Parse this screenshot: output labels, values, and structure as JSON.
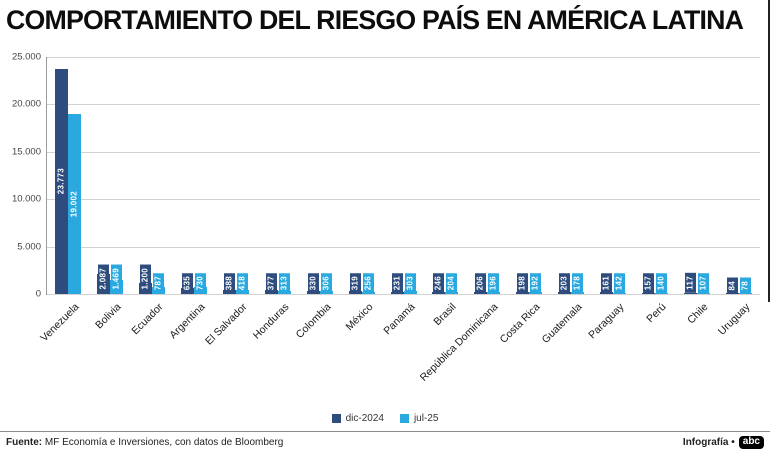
{
  "title": "COMPORTAMIENTO DEL RIESGO PAÍS EN AMÉRICA LATINA",
  "footer": {
    "source_label": "Fuente:",
    "source_text": " MF Economía e Inversiones, con datos de Bloomberg",
    "credit": "Infografía •",
    "logo": "abc"
  },
  "chart_data": {
    "type": "bar",
    "title": "COMPORTAMIENTO DEL RIESGO PAÍS EN AMÉRICA LATINA",
    "xlabel": "",
    "ylabel": "",
    "ylim": [
      0,
      25000
    ],
    "yticks": [
      0,
      5000,
      10000,
      15000,
      20000,
      25000
    ],
    "ytick_labels": [
      "0",
      "5.000",
      "10.000",
      "15.000",
      "20.000",
      "25.000"
    ],
    "grid": true,
    "legend_position": "bottom",
    "categories": [
      "Venezuela",
      "Bolivia",
      "Ecuador",
      "Argentina",
      "El Salvador",
      "Honduras",
      "Colombia",
      "México",
      "Panamá",
      "Brasil",
      "República Dominicana",
      "Costa Rica",
      "Guatemala",
      "Paraguay",
      "Perú",
      "Chile",
      "Uruguay"
    ],
    "series": [
      {
        "name": "dic-2024",
        "color": "#2e4d7e",
        "values": [
          23773,
          2087,
          1200,
          635,
          388,
          377,
          330,
          319,
          231,
          246,
          206,
          198,
          203,
          161,
          157,
          117,
          84
        ],
        "labels": [
          "23.773",
          "2.087",
          "1.200",
          "635",
          "388",
          "377",
          "330",
          "319",
          "231",
          "246",
          "206",
          "198",
          "203",
          "161",
          "157",
          "117",
          "84"
        ]
      },
      {
        "name": "jul-25",
        "color": "#29a9e0",
        "values": [
          19002,
          1469,
          787,
          730,
          418,
          313,
          306,
          256,
          303,
          204,
          196,
          192,
          178,
          142,
          140,
          107,
          78
        ],
        "labels": [
          "19.002",
          "1.469",
          "787",
          "730",
          "418",
          "313",
          "306",
          "256",
          "303",
          "204",
          "196",
          "192",
          "178",
          "142",
          "140",
          "107",
          "78"
        ]
      }
    ]
  }
}
